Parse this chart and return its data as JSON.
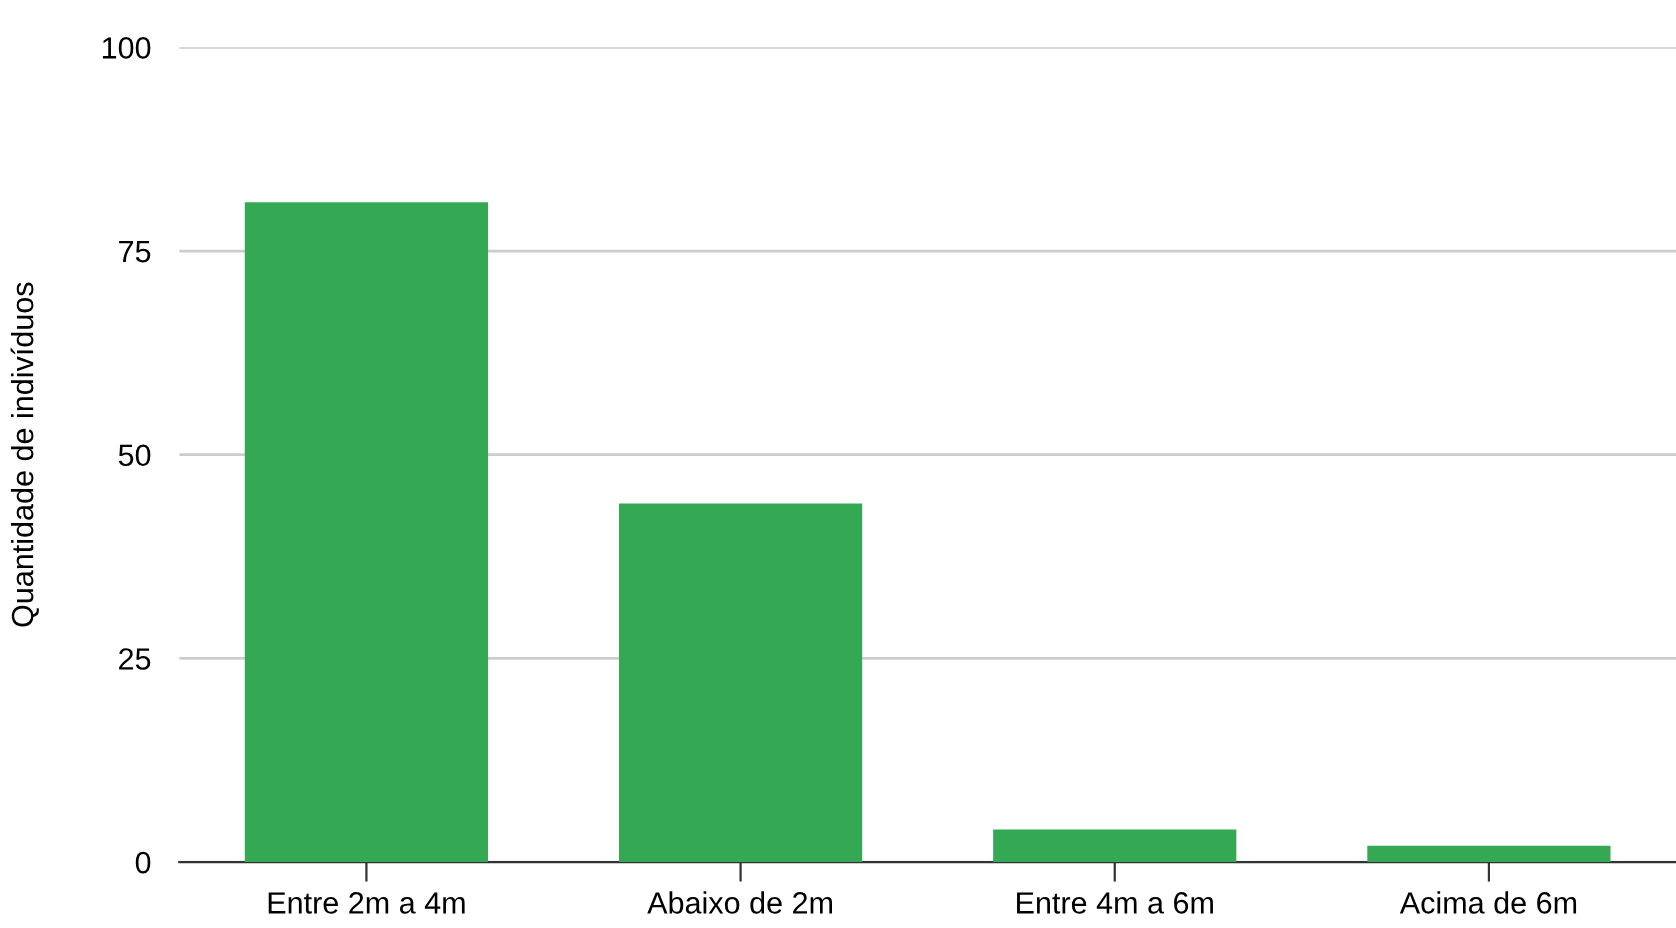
{
  "chart_data": {
    "type": "bar",
    "ylabel": "Quantidade de indivíduos",
    "categories": [
      "Entre 2m a 4m",
      "Abaixo de 2m",
      "Entre 4m a 6m",
      "Acima de 6m"
    ],
    "values": [
      81,
      44,
      4,
      2
    ],
    "color": "#34a853",
    "ylim": [
      0,
      100
    ],
    "yticks": [
      0,
      25,
      50,
      75,
      100
    ],
    "grid": "y"
  }
}
